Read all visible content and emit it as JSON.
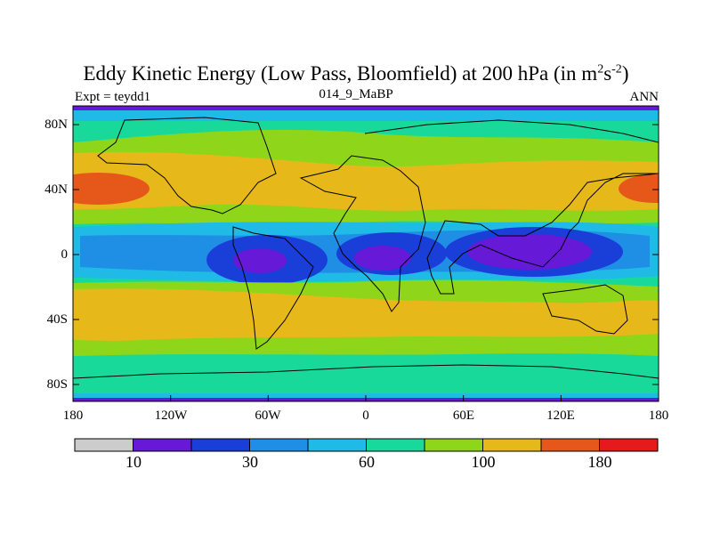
{
  "title_main": "Eddy Kinetic Energy (Low Pass, Bloomfield) at 200 hPa (in m",
  "title_exp1": "2",
  "title_mid": "s",
  "title_exp2": "-2",
  "title_end": ")",
  "subtitle_left": "Expt = teydd1",
  "subtitle_center": "014_9_MaBP",
  "subtitle_right": "ANN",
  "y_ticks": [
    "80N",
    "40N",
    "0",
    "40S",
    "80S"
  ],
  "x_ticks": [
    "180",
    "120W",
    "60W",
    "0",
    "60E",
    "120E",
    "180"
  ],
  "colorbar": {
    "colors": [
      "#cccccc",
      "#6619d6",
      "#1a3fd9",
      "#1f8fe6",
      "#1fbbe6",
      "#19d99a",
      "#8fd61a",
      "#e6b81a",
      "#e6581a",
      "#e61a1a"
    ],
    "labels": [
      "10",
      "30",
      "60",
      "100",
      "180"
    ]
  },
  "palette": {
    "ocean_band": "#19d99a",
    "teal": "#19d99a",
    "green": "#8fd61a",
    "gold": "#e6b81a",
    "orange": "#e6581a",
    "cyan": "#1fbbe6",
    "blue": "#1f8fe6",
    "deepblue": "#1a3fd9",
    "purple": "#6619d6"
  }
}
